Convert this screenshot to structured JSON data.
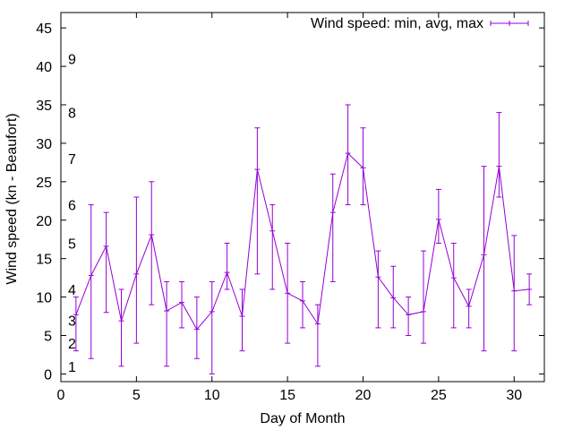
{
  "chart_data": {
    "type": "line",
    "xlabel": "Day of Month",
    "ylabel": "Wind speed (kn - Beaufort)",
    "xlim": [
      0,
      32
    ],
    "ylim": [
      -1,
      47
    ],
    "x_ticks": [
      0,
      5,
      10,
      15,
      20,
      25,
      30
    ],
    "y_ticks": [
      0,
      5,
      10,
      15,
      20,
      25,
      30,
      35,
      40,
      45
    ],
    "beaufort_labels": [
      {
        "label": "1",
        "y": 1
      },
      {
        "label": "2",
        "y": 4
      },
      {
        "label": "3",
        "y": 7
      },
      {
        "label": "4",
        "y": 11
      },
      {
        "label": "5",
        "y": 17
      },
      {
        "label": "6",
        "y": 22
      },
      {
        "label": "7",
        "y": 28
      },
      {
        "label": "8",
        "y": 34
      },
      {
        "label": "9",
        "y": 41
      }
    ],
    "legend_position": "top-right",
    "grid": false,
    "series": [
      {
        "name": "Wind speed: min, avg, max",
        "color": "#9400d3",
        "x": [
          1,
          2,
          3,
          4,
          5,
          6,
          7,
          8,
          9,
          10,
          11,
          12,
          13,
          14,
          15,
          16,
          17,
          18,
          19,
          20,
          21,
          22,
          23,
          24,
          25,
          26,
          27,
          28,
          29,
          30,
          31
        ],
        "avg": [
          7.7,
          12.8,
          16.6,
          6.9,
          13.0,
          18.1,
          8.2,
          9.3,
          5.8,
          8.1,
          13.2,
          7.5,
          26.6,
          18.6,
          10.5,
          9.5,
          6.5,
          21.0,
          28.7,
          26.8,
          12.6,
          9.9,
          7.7,
          8.1,
          20.1,
          12.5,
          8.8,
          15.5,
          27.0,
          10.8,
          11.0
        ],
        "min": [
          3,
          2,
          8,
          1,
          4,
          9,
          1,
          6,
          2,
          0,
          11,
          3,
          13,
          11,
          4,
          6,
          1,
          12,
          22,
          22,
          6,
          6,
          5,
          4,
          17,
          6,
          6,
          3,
          23,
          3,
          9
        ],
        "max": [
          10,
          22,
          21,
          11,
          23,
          25,
          12,
          12,
          10,
          12,
          17,
          11,
          32,
          22,
          17,
          12,
          9,
          26,
          35,
          32,
          16,
          14,
          10,
          16,
          24,
          17,
          11,
          27,
          34,
          18,
          13
        ]
      }
    ]
  }
}
